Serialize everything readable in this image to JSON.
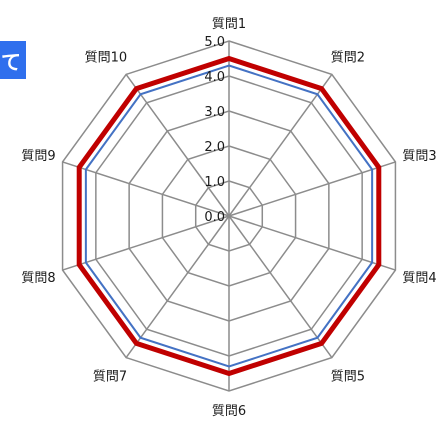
{
  "header": {
    "tab_fragment": "て"
  },
  "chart_data": {
    "type": "radar",
    "categories": [
      "質問1",
      "質問2",
      "質問3",
      "質問4",
      "質問5",
      "質問6",
      "質問7",
      "質問8",
      "質問9",
      "質問10"
    ],
    "radial_ticks": [
      "0.0",
      "1.0",
      "2.0",
      "3.0",
      "4.0",
      "5.0"
    ],
    "rlim": [
      0,
      5
    ],
    "series": [
      {
        "values": [
          4.5,
          4.5,
          4.5,
          4.5,
          4.5,
          4.5,
          4.5,
          4.5,
          4.5,
          4.5
        ],
        "color": "#c00000"
      },
      {
        "values": [
          4.3,
          4.3,
          4.3,
          4.3,
          4.3,
          4.3,
          4.3,
          4.3,
          4.3,
          4.3
        ],
        "color": "#4472c4"
      }
    ],
    "grid": true,
    "legend": false
  },
  "colors": {
    "grid": "#8c8c8c",
    "tab_background": "#2f6fed"
  }
}
